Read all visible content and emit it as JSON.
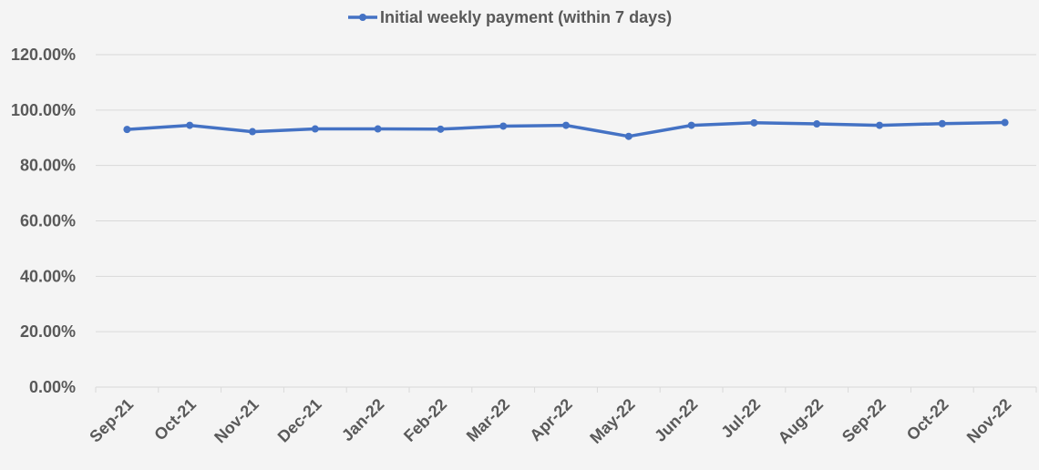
{
  "chart_data": {
    "type": "line",
    "title": "",
    "xlabel": "",
    "ylabel": "",
    "categories": [
      "Sep-21",
      "Oct-21",
      "Nov-21",
      "Dec-21",
      "Jan-22",
      "Feb-22",
      "Mar-22",
      "Apr-22",
      "May-22",
      "Jun-22",
      "Jul-22",
      "Aug-22",
      "Sep-22",
      "Oct-22",
      "Nov-22"
    ],
    "y_tick_labels": [
      "0.00%",
      "20.00%",
      "40.00%",
      "60.00%",
      "80.00%",
      "100.00%",
      "120.00%"
    ],
    "y_ticks": [
      0,
      20,
      40,
      60,
      80,
      100,
      120
    ],
    "ylim": [
      0,
      120
    ],
    "grid": true,
    "legend_position": "top",
    "series": [
      {
        "name": "Initial weekly payment (within 7 days)",
        "color": "#4472c4",
        "values": [
          93.0,
          94.5,
          92.2,
          93.2,
          93.2,
          93.1,
          94.2,
          94.5,
          90.5,
          94.5,
          95.4,
          95.0,
          94.5,
          95.1,
          95.5
        ]
      }
    ]
  }
}
